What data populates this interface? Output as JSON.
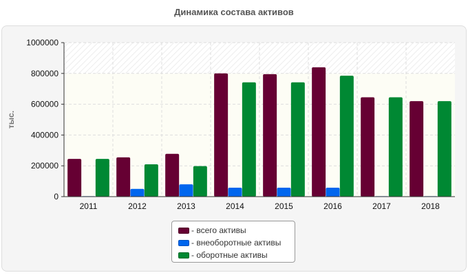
{
  "chart_data": {
    "type": "bar",
    "title": "Динамика состава активов",
    "xlabel": "",
    "ylabel": "тыс.",
    "ylim": [
      0,
      1000000
    ],
    "yticks": [
      0,
      200000,
      400000,
      600000,
      800000,
      1000000
    ],
    "categories": [
      "2011",
      "2012",
      "2013",
      "2014",
      "2015",
      "2016",
      "2017",
      "2018"
    ],
    "series": [
      {
        "name": "- всего активы",
        "color": "#660033",
        "values": [
          245000,
          255000,
          278000,
          800000,
          795000,
          840000,
          645000,
          620000
        ]
      },
      {
        "name": "- внеоборотные активы",
        "color": "#0066ee",
        "values": [
          3000,
          50000,
          80000,
          58000,
          58000,
          58000,
          3000,
          3000
        ]
      },
      {
        "name": "- оборотные активы",
        "color": "#008833",
        "values": [
          245000,
          210000,
          198000,
          742000,
          742000,
          785000,
          645000,
          620000
        ]
      }
    ],
    "grid": true,
    "legend": "bottom-center"
  }
}
